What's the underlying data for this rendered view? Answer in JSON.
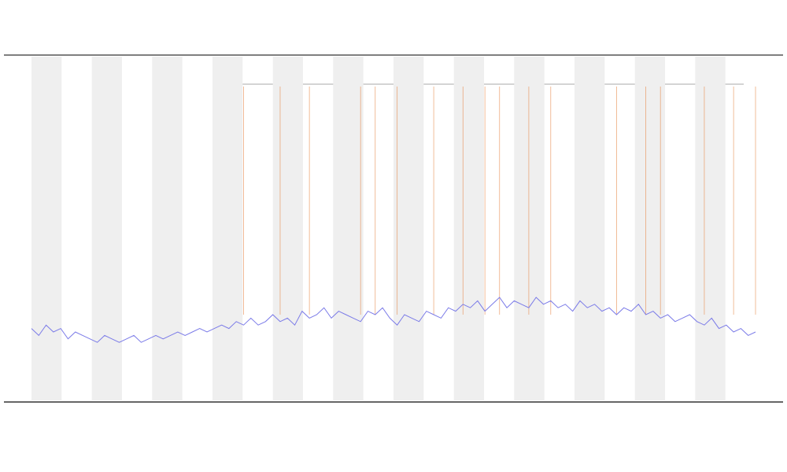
{
  "chart_data": {
    "type": "line",
    "x": [
      0,
      1,
      2,
      3,
      4,
      5,
      6,
      7,
      8,
      9,
      10,
      11,
      12,
      13,
      14,
      15,
      16,
      17,
      18,
      19,
      20,
      21,
      22,
      23,
      24,
      25,
      26,
      27,
      28,
      29,
      30,
      31,
      32,
      33,
      34,
      35,
      36,
      37,
      38,
      39,
      40,
      41,
      42,
      43,
      44,
      45,
      46,
      47,
      48,
      49,
      50,
      51,
      52,
      53,
      54,
      55,
      56,
      57,
      58,
      59,
      60,
      61,
      62,
      63,
      64,
      65,
      66,
      67,
      68,
      69,
      70,
      71,
      72,
      73,
      74,
      75,
      76,
      77,
      78,
      79,
      80,
      81,
      82,
      83,
      84,
      85,
      86,
      87,
      88,
      89,
      90,
      91,
      92,
      93,
      94,
      95,
      96,
      97,
      98,
      99
    ],
    "series": [
      {
        "color": "#7b7be8",
        "values": [
          21,
          19,
          22,
          20,
          21,
          18,
          20,
          19,
          18,
          17,
          19,
          18,
          17,
          18,
          19,
          17,
          18,
          19,
          18,
          19,
          20,
          19,
          20,
          21,
          20,
          21,
          22,
          21,
          23,
          22,
          24,
          22,
          23,
          25,
          23,
          24,
          22,
          26,
          24,
          25,
          27,
          24,
          26,
          25,
          24,
          23,
          26,
          25,
          27,
          24,
          22,
          25,
          24,
          23,
          26,
          25,
          24,
          27,
          26,
          28,
          27,
          29,
          26,
          28,
          30,
          27,
          29,
          28,
          27,
          30,
          28,
          29,
          27,
          28,
          26,
          29,
          27,
          28,
          26,
          27,
          25,
          27,
          26,
          28,
          25,
          26,
          24,
          25,
          23,
          24,
          25,
          23,
          22,
          24,
          21,
          22,
          20,
          21,
          19,
          20
        ]
      }
    ],
    "events": {
      "color": "#e8894a",
      "x": [
        29,
        34,
        38,
        45,
        47,
        50,
        55,
        59,
        62,
        64,
        68,
        71,
        80,
        84,
        86,
        92,
        96,
        99
      ]
    },
    "xlim": [
      0,
      99
    ],
    "ylim": [
      0,
      100
    ]
  }
}
